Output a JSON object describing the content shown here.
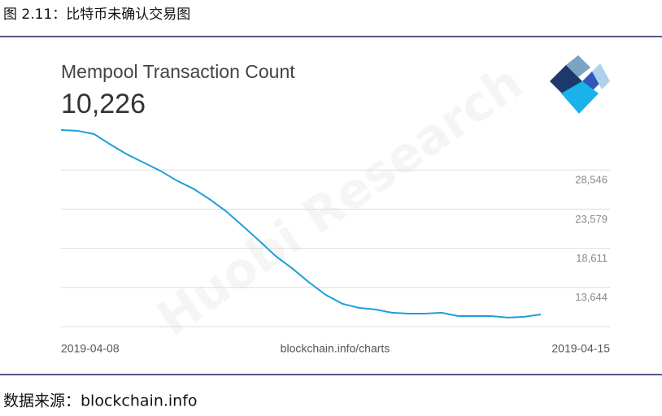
{
  "caption": "图 2.11：比特币未确认交易图",
  "source_note": "数据来源：blockchain.info",
  "watermark": "Huobi Research",
  "chart_data": {
    "type": "line",
    "title": "Mempool Transaction Count",
    "headline": "10,226",
    "source": "blockchain.info/charts",
    "x_axis_labels": [
      "2019-04-08",
      "2019-04-15"
    ],
    "categories": [
      null,
      null,
      null,
      null,
      null,
      null,
      null,
      null,
      null,
      null,
      null,
      null,
      null,
      null,
      null,
      null,
      null,
      null,
      null,
      null,
      null,
      null,
      null,
      null,
      null,
      null,
      null,
      null,
      null,
      null
    ],
    "values": [
      33620,
      33510,
      33100,
      31760,
      30510,
      29480,
      28440,
      27200,
      26170,
      24820,
      23270,
      21410,
      19540,
      17580,
      16020,
      14270,
      12710,
      11580,
      11060,
      10850,
      10440,
      10330,
      10330,
      10440,
      10020,
      10020,
      10020,
      9820,
      9920,
      10226
    ],
    "color": "#1f9fd8",
    "ylim": [
      8677,
      33617
    ],
    "yticks": [
      {
        "value": 13644,
        "label": "13,644"
      },
      {
        "value": 18611,
        "label": "18,611"
      },
      {
        "value": 23579,
        "label": "23,579"
      },
      {
        "value": 28546,
        "label": "28,546"
      }
    ],
    "grid": true
  }
}
